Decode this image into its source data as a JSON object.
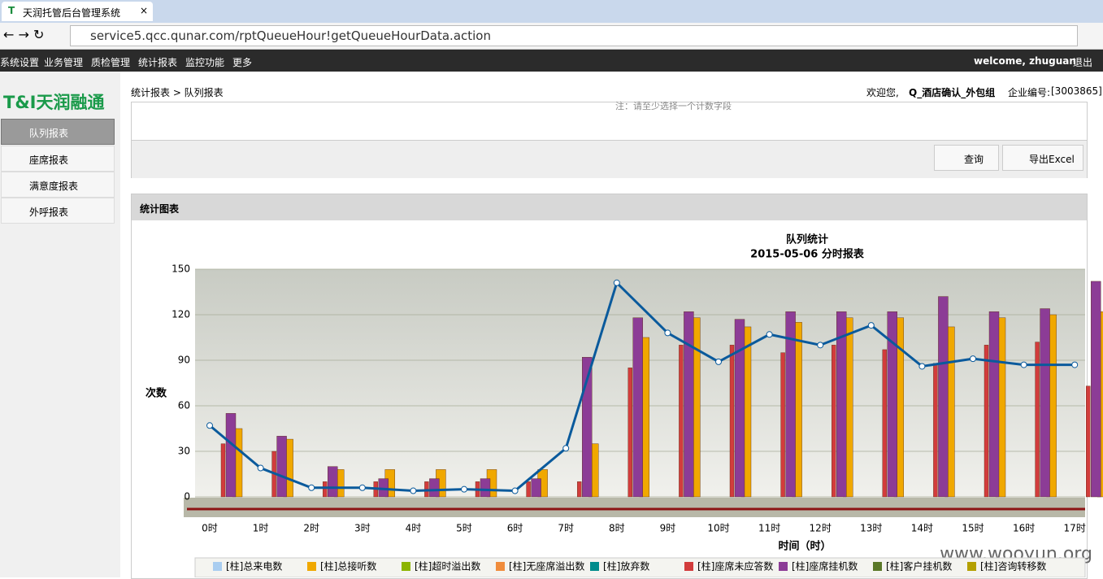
{
  "browser": {
    "tab_title": "天润托管后台管理系统",
    "url": "service5.qcc.qunar.com/rptQueueHour!getQueueHourData.action"
  },
  "nav": {
    "items": [
      "系统设置",
      "业务管理",
      "质检管理",
      "统计报表",
      "监控功能",
      "更多"
    ],
    "welcome": "welcome, zhuguan",
    "logout": "退出"
  },
  "sidebar": {
    "logo": "T&I天润融通",
    "menu": [
      "队列报表",
      "座席报表",
      "满意度报表",
      "外呼报表"
    ]
  },
  "header": {
    "breadcrumb": "统计报表 > 队列报表",
    "greeting": "欢迎您,",
    "user": "Q_酒店确认_外包组",
    "company_label": "企业编号:",
    "company_id": "[3003865]"
  },
  "form": {
    "note": "注：请至少选择一个计数字段",
    "query": "查询",
    "export": "导出Excel"
  },
  "panel": {
    "title": "统计图表"
  },
  "watermark": "www.wooyun.org",
  "chart_data": {
    "type": "bar",
    "title": "队列统计",
    "subtitle": "2015-05-06 分时报表",
    "y_label": "次数",
    "x_label": "时间（时）",
    "categories": [
      "0时",
      "1时",
      "2时",
      "3时",
      "4时",
      "5时",
      "6时",
      "7时",
      "8时",
      "9时",
      "10时",
      "11时",
      "12时",
      "13时",
      "14时",
      "15时",
      "16时",
      "17时"
    ],
    "ylim": [
      0,
      150
    ],
    "yticks": [
      0,
      30,
      60,
      90,
      120,
      150
    ],
    "grid": true,
    "series": [
      {
        "name": "[柱]总来电数",
        "color": "#a9cdf0"
      },
      {
        "name": "[柱]总接听数",
        "color": "#f0a800",
        "values": [
          45,
          38,
          18,
          18,
          18,
          18,
          18,
          35,
          105,
          118,
          112,
          115,
          118,
          118,
          112,
          118,
          120,
          122
        ]
      },
      {
        "name": "[柱]超时溢出数",
        "color": "#8cb400"
      },
      {
        "name": "[柱]无座席溢出数",
        "color": "#f08c3c"
      },
      {
        "name": "[柱]放弃数",
        "color": "#008c8c"
      },
      {
        "name": "[柱]座席未应答数",
        "color": "#d23c3c",
        "values": [
          35,
          30,
          10,
          10,
          10,
          10,
          10,
          10,
          85,
          100,
          100,
          95,
          100,
          97,
          88,
          100,
          102,
          73
        ]
      },
      {
        "name": "[柱]座席挂机数",
        "color": "#8c3c96",
        "values": [
          55,
          40,
          20,
          12,
          12,
          12,
          12,
          92,
          118,
          122,
          117,
          122,
          122,
          122,
          132,
          122,
          124,
          142
        ]
      },
      {
        "name": "[柱]客户挂机数",
        "color": "#5a7828"
      },
      {
        "name": "[柱]咨询转移数",
        "color": "#b4a000"
      }
    ],
    "line": {
      "color": "#0a5a9c",
      "values": [
        47,
        19,
        6,
        6,
        4,
        5,
        4,
        32,
        141,
        108,
        89,
        107,
        100,
        113,
        86,
        91,
        87,
        87
      ]
    }
  }
}
